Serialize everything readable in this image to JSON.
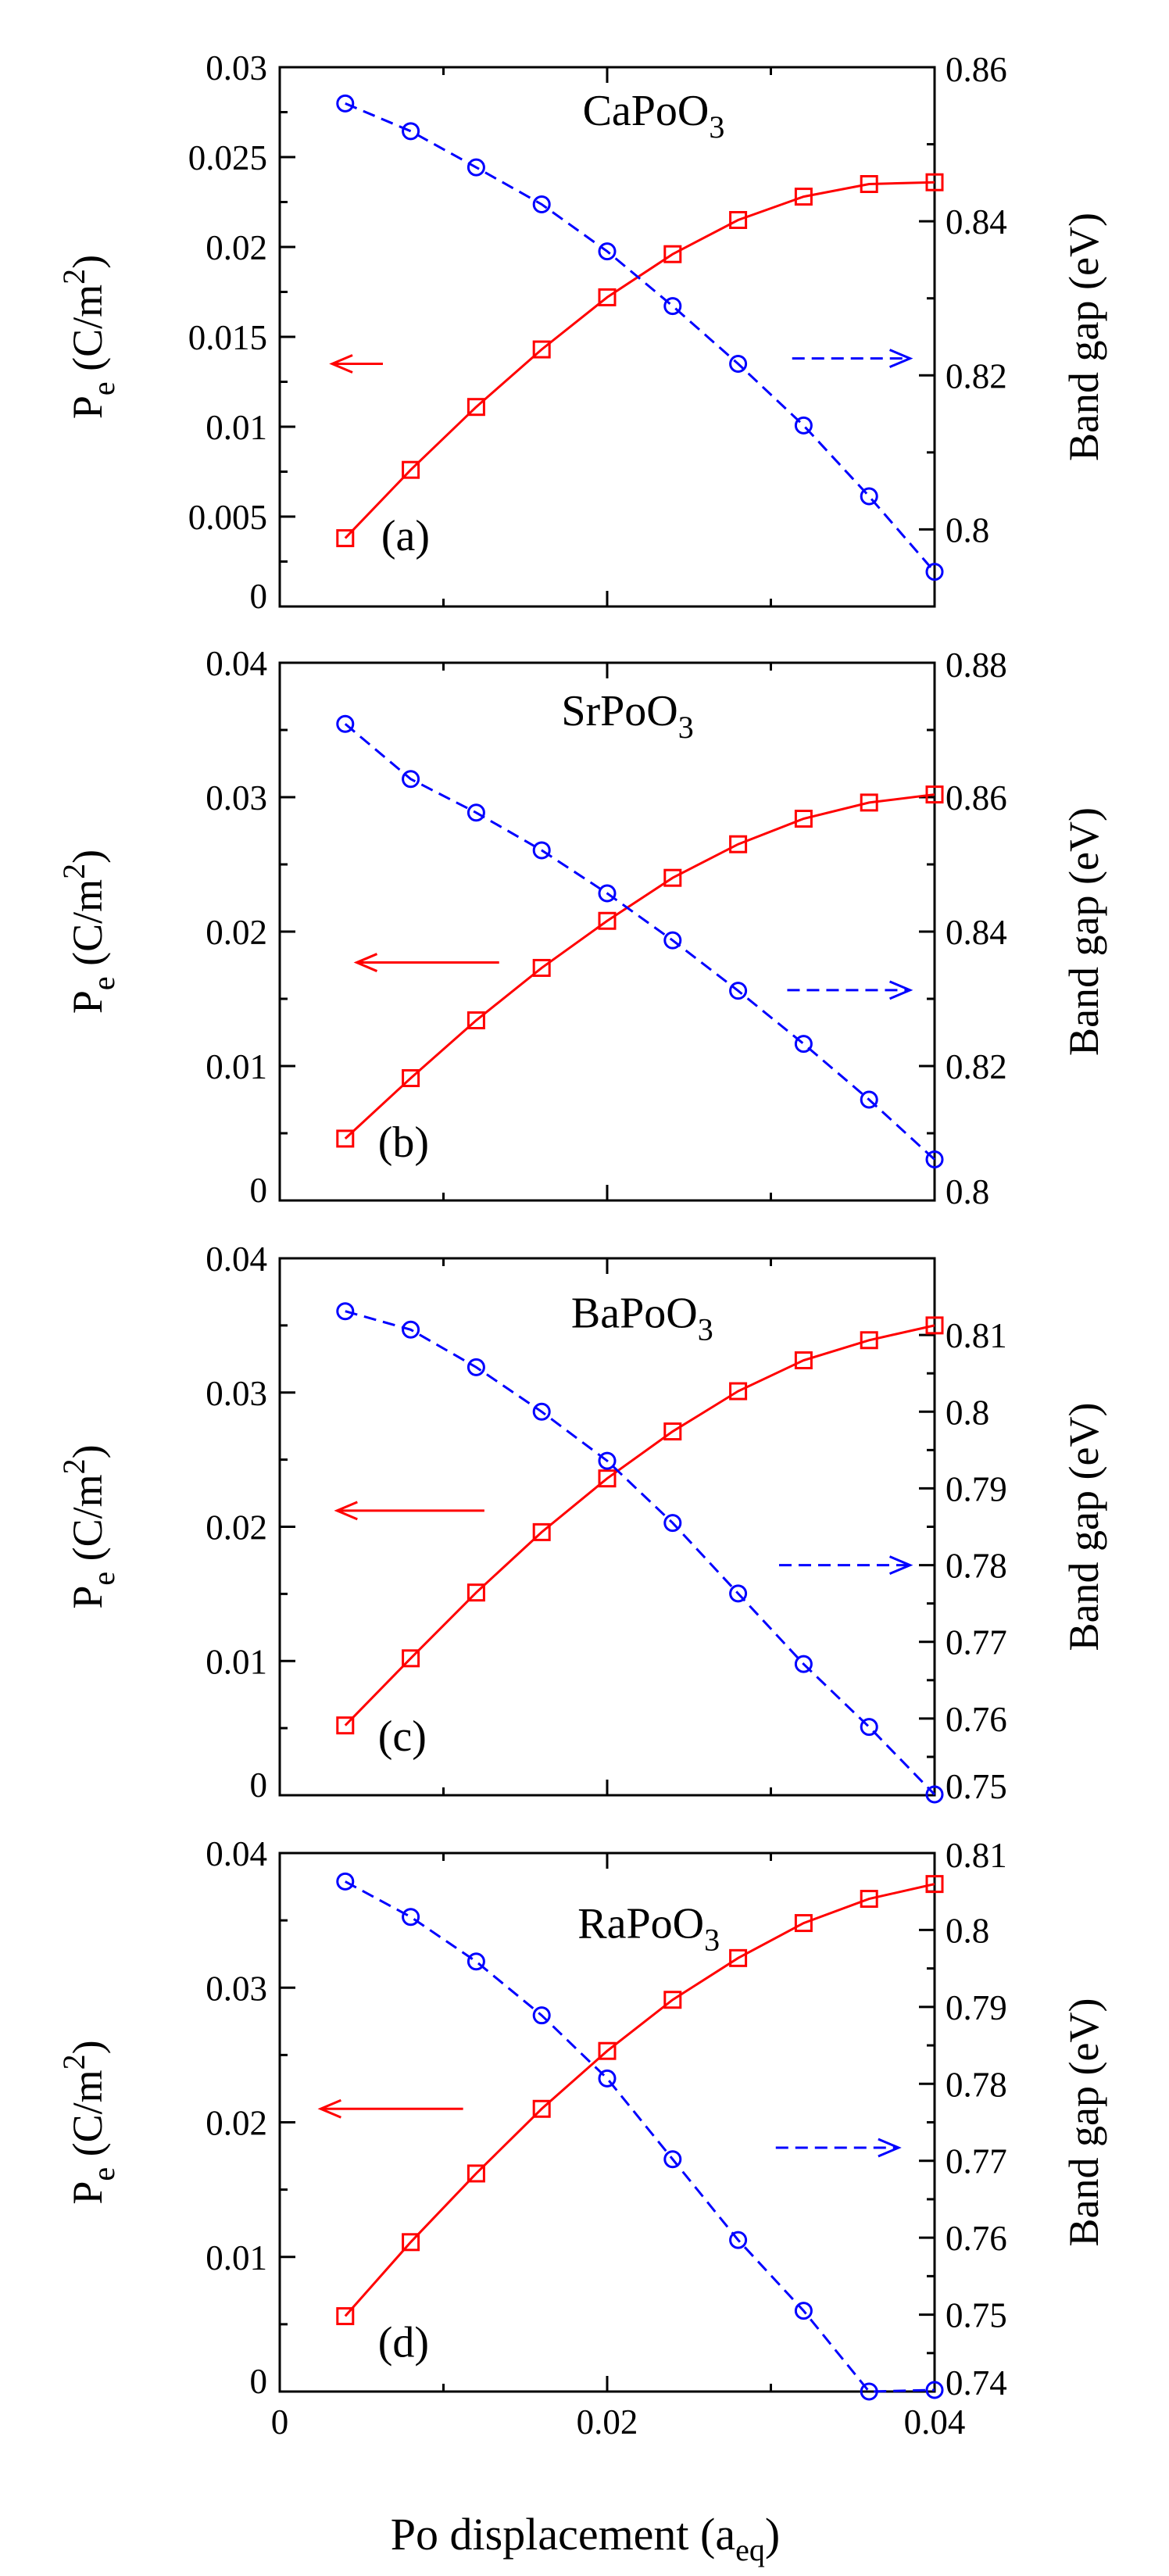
{
  "figure": {
    "xlabel_main": "Po displacement (a",
    "xlabel_sub": "eq",
    "xlabel_close": ")"
  },
  "chart_data": [
    {
      "type": "line",
      "panel": "a",
      "tag": "(a)",
      "compound": "CaPoO",
      "compound_sub": "3",
      "ylabel_left_main": "P",
      "ylabel_left_sub": "e",
      "ylabel_left_unit": "(C/m",
      "ylabel_left_sup": "2",
      "ylabel_left_close": ")",
      "ylabel_right": "Band gap (eV)",
      "xlim": [
        0,
        0.04
      ],
      "ylim_left": [
        0,
        0.03
      ],
      "ylim_right": [
        0.79,
        0.86
      ],
      "xticks": [
        0,
        0.02,
        0.04
      ],
      "xtick_labels": [
        "0",
        "0.02",
        "0.04"
      ],
      "show_xtick_labels": false,
      "yticks_left": [
        0,
        0.005,
        0.01,
        0.015,
        0.02,
        0.025,
        0.03
      ],
      "ytick_labels_left": [
        "0",
        "0.005",
        "0.01",
        "0.015",
        "0.02",
        "0.025",
        "0.03"
      ],
      "yticks_right": [
        0.8,
        0.82,
        0.84,
        0.86
      ],
      "ytick_labels_right": [
        "0.8",
        "0.82",
        "0.84",
        "0.86"
      ],
      "x": [
        0.004,
        0.008,
        0.012,
        0.016,
        0.02,
        0.024,
        0.028,
        0.032,
        0.036,
        0.04
      ],
      "series": [
        {
          "name": "P_e",
          "axis": "left",
          "marker": "square",
          "color": "#ff0000",
          "style": "solid",
          "values": [
            0.0038,
            0.0076,
            0.0111,
            0.0143,
            0.0172,
            0.0196,
            0.0215,
            0.0228,
            0.0235,
            0.0236
          ]
        },
        {
          "name": "Band gap",
          "axis": "right",
          "marker": "circle",
          "color": "#0000ff",
          "style": "dashed",
          "values": [
            0.8553,
            0.8517,
            0.847,
            0.8422,
            0.8361,
            0.829,
            0.8215,
            0.8135,
            0.8043,
            0.7945
          ]
        }
      ],
      "arrow_left": {
        "from": [
          0.0063,
          0.0135
        ],
        "to": [
          0.0032,
          0.0135
        ]
      },
      "arrow_right": {
        "from": [
          0.0313,
          0.8222
        ],
        "to": [
          0.0385,
          0.8222
        ]
      },
      "label_pos": {
        "compound": [
          0.0185,
          0.8525
        ],
        "tag": [
          0.0062,
          0.7973
        ]
      }
    },
    {
      "type": "line",
      "panel": "b",
      "tag": "(b)",
      "compound": "SrPoO",
      "compound_sub": "3",
      "ylabel_left_main": "P",
      "ylabel_left_sub": "e",
      "ylabel_left_unit": "(C/m",
      "ylabel_left_sup": "2",
      "ylabel_left_close": ")",
      "ylabel_right": "Band gap (eV)",
      "xlim": [
        0,
        0.04
      ],
      "ylim_left": [
        0,
        0.04
      ],
      "ylim_right": [
        0.8,
        0.88
      ],
      "xticks": [
        0,
        0.02,
        0.04
      ],
      "xtick_labels": [
        "0",
        "0.02",
        "0.04"
      ],
      "show_xtick_labels": false,
      "yticks_left": [
        0,
        0.01,
        0.02,
        0.03,
        0.04
      ],
      "ytick_labels_left": [
        "0",
        "0.01",
        "0.02",
        "0.03",
        "0.04"
      ],
      "yticks_right": [
        0.8,
        0.82,
        0.84,
        0.86,
        0.88
      ],
      "ytick_labels_right": [
        "0.8",
        "0.82",
        "0.84",
        "0.86",
        "0.88"
      ],
      "x": [
        0.004,
        0.008,
        0.012,
        0.016,
        0.02,
        0.024,
        0.028,
        0.032,
        0.036,
        0.04
      ],
      "series": [
        {
          "name": "P_e",
          "axis": "left",
          "marker": "square",
          "color": "#ff0000",
          "style": "solid",
          "values": [
            0.0046,
            0.0091,
            0.0134,
            0.0173,
            0.0208,
            0.024,
            0.0265,
            0.0284,
            0.0296,
            0.0302
          ]
        },
        {
          "name": "Band gap",
          "axis": "right",
          "marker": "circle",
          "color": "#0000ff",
          "style": "dashed",
          "values": [
            0.8709,
            0.8627,
            0.8577,
            0.8521,
            0.8457,
            0.8387,
            0.8312,
            0.8233,
            0.815,
            0.8061
          ]
        }
      ],
      "arrow_left": {
        "from": [
          0.0134,
          0.0177
        ],
        "to": [
          0.0047,
          0.0177
        ]
      },
      "arrow_right": {
        "from": [
          0.031,
          0.8313
        ],
        "to": [
          0.0385,
          0.8313
        ]
      },
      "label_pos": {
        "compound": [
          0.0172,
          0.8707
        ],
        "tag": [
          0.006,
          0.8065
        ]
      }
    },
    {
      "type": "line",
      "panel": "c",
      "tag": "(c)",
      "compound": "BaPoO",
      "compound_sub": "3",
      "ylabel_left_main": "P",
      "ylabel_left_sub": "e",
      "ylabel_left_unit": "(C/m",
      "ylabel_left_sup": "2",
      "ylabel_left_close": ")",
      "ylabel_right": "Band gap (eV)",
      "xlim": [
        0,
        0.04
      ],
      "ylim_left": [
        0,
        0.04
      ],
      "ylim_right": [
        0.75,
        0.82
      ],
      "xticks": [
        0,
        0.02,
        0.04
      ],
      "xtick_labels": [
        "0",
        "0.02",
        "0.04"
      ],
      "show_xtick_labels": false,
      "yticks_left": [
        0,
        0.01,
        0.02,
        0.03,
        0.04
      ],
      "ytick_labels_left": [
        "0",
        "0.01",
        "0.02",
        "0.03",
        "0.04"
      ],
      "yticks_right": [
        0.75,
        0.76,
        0.77,
        0.78,
        0.79,
        0.8,
        0.81
      ],
      "ytick_labels_right": [
        "0.75",
        "0.76",
        "0.77",
        "0.78",
        "0.79",
        "0.8",
        "0.81"
      ],
      "x": [
        0.004,
        0.008,
        0.012,
        0.016,
        0.02,
        0.024,
        0.028,
        0.032,
        0.036,
        0.04
      ],
      "series": [
        {
          "name": "P_e",
          "axis": "left",
          "marker": "square",
          "color": "#ff0000",
          "style": "solid",
          "values": [
            0.0052,
            0.0102,
            0.0151,
            0.0196,
            0.0236,
            0.0271,
            0.0301,
            0.0324,
            0.0339,
            0.035
          ]
        },
        {
          "name": "Band gap",
          "axis": "right",
          "marker": "circle",
          "color": "#0000ff",
          "style": "dashed",
          "values": [
            0.8131,
            0.8107,
            0.8058,
            0.8,
            0.7936,
            0.7855,
            0.7763,
            0.7671,
            0.7589,
            0.7501
          ]
        }
      ],
      "arrow_left": {
        "from": [
          0.0125,
          0.0212
        ],
        "to": [
          0.0035,
          0.0212
        ]
      },
      "arrow_right": {
        "from": [
          0.0305,
          0.78
        ],
        "to": [
          0.0385,
          0.78
        ]
      },
      "label_pos": {
        "compound": [
          0.0178,
          0.811
        ],
        "tag": [
          0.006,
          0.7558
        ]
      }
    },
    {
      "type": "line",
      "panel": "d",
      "tag": "(d)",
      "compound": "RaPoO",
      "compound_sub": "3",
      "ylabel_left_main": "P",
      "ylabel_left_sub": "e",
      "ylabel_left_unit": "(C/m",
      "ylabel_left_sup": "2",
      "ylabel_left_close": ")",
      "ylabel_right": "Band gap (eV)",
      "xlim": [
        0,
        0.04
      ],
      "ylim_left": [
        0,
        0.04
      ],
      "ylim_right": [
        0.74,
        0.81
      ],
      "xticks": [
        0,
        0.02,
        0.04
      ],
      "xtick_labels": [
        "0",
        "0.02",
        "0.04"
      ],
      "show_xtick_labels": true,
      "yticks_left": [
        0,
        0.01,
        0.02,
        0.03,
        0.04
      ],
      "ytick_labels_left": [
        "0",
        "0.01",
        "0.02",
        "0.03",
        "0.04"
      ],
      "yticks_right": [
        0.74,
        0.75,
        0.76,
        0.77,
        0.78,
        0.79,
        0.8,
        0.81
      ],
      "ytick_labels_right": [
        "0.74",
        "0.75",
        "0.76",
        "0.77",
        "0.78",
        "0.79",
        "0.8",
        "0.81"
      ],
      "x": [
        0.004,
        0.008,
        0.012,
        0.016,
        0.02,
        0.024,
        0.028,
        0.032,
        0.036,
        0.04
      ],
      "series": [
        {
          "name": "P_e",
          "axis": "left",
          "marker": "square",
          "color": "#ff0000",
          "style": "solid",
          "values": [
            0.0056,
            0.0111,
            0.0162,
            0.021,
            0.0253,
            0.0291,
            0.0322,
            0.0348,
            0.0366,
            0.0377
          ]
        },
        {
          "name": "Band gap",
          "axis": "right",
          "marker": "circle",
          "color": "#0000ff",
          "style": "dashed",
          "values": [
            0.8063,
            0.8017,
            0.7959,
            0.7889,
            0.7807,
            0.7702,
            0.7597,
            0.7505,
            0.74,
            0.7402
          ]
        }
      ],
      "arrow_left": {
        "from": [
          0.0112,
          0.021
        ],
        "to": [
          0.0025,
          0.021
        ]
      },
      "arrow_right": {
        "from": [
          0.0303,
          0.7717
        ],
        "to": [
          0.0378,
          0.7717
        ]
      },
      "label_pos": {
        "compound": [
          0.0182,
          0.799
        ],
        "tag": [
          0.006,
          0.7445
        ]
      }
    }
  ]
}
